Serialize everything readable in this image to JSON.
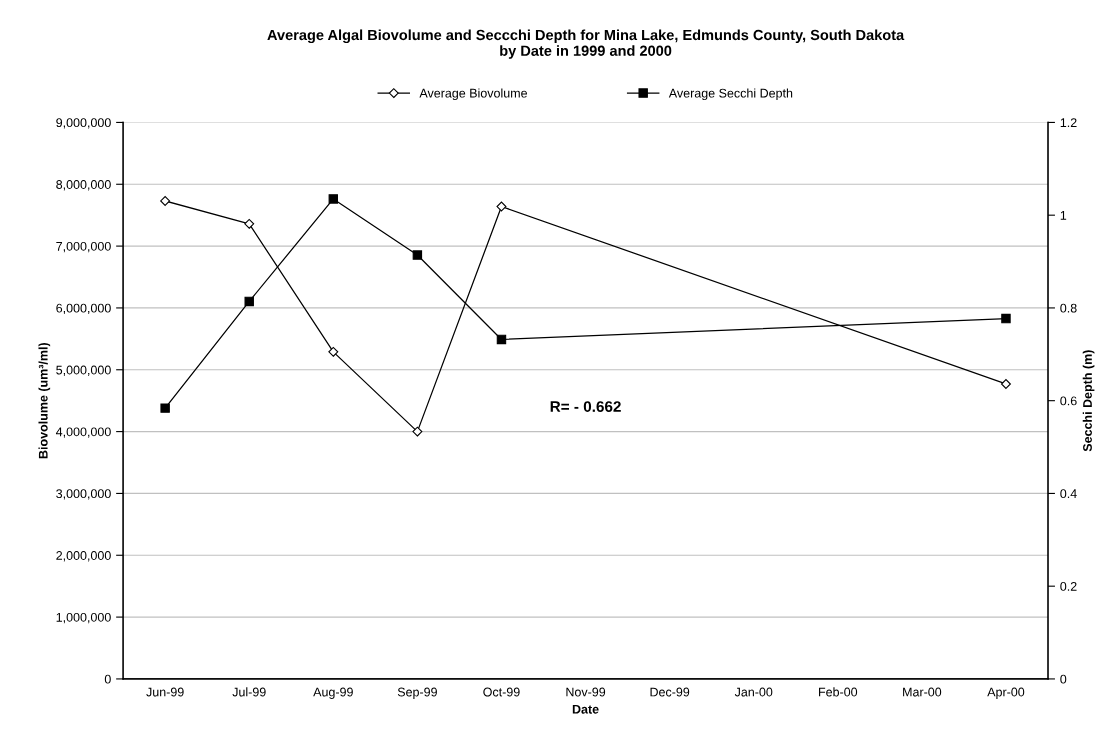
{
  "chart_data": {
    "type": "line",
    "title": "Average Algal Biovolume and Seccchi Depth for Mina Lake, Edmunds County, South Dakota\nby Date in 1999 and 2000",
    "xlabel": "Date",
    "ylabel": "Biovolume (um³/ml)",
    "y2label": "Secchi Depth (m)",
    "categories": [
      "Jun-99",
      "Jul-99",
      "Aug-99",
      "Sep-99",
      "Oct-99",
      "Nov-99",
      "Dec-99",
      "Jan-00",
      "Feb-00",
      "Mar-00",
      "Apr-00"
    ],
    "series": [
      {
        "name": "Average Biovolume",
        "color": "#000000",
        "marker": "diamond",
        "values": [
          7730000,
          7360000,
          5290000,
          4000000,
          7640000,
          null,
          null,
          null,
          null,
          null,
          4770000
        ]
      },
      {
        "name": "Average Secchi Depth",
        "color": "#000000",
        "marker": "square",
        "axis": "y2",
        "values": [
          0.584,
          0.814,
          1.035,
          0.914,
          0.732,
          null,
          null,
          null,
          null,
          null,
          0.777
        ]
      }
    ],
    "ylim": [
      0,
      9000000
    ],
    "yticks": [
      {
        "value": 0,
        "label": "0"
      },
      {
        "value": 1000000,
        "label": "1,000,000"
      },
      {
        "value": 2000000,
        "label": "2,000,000"
      },
      {
        "value": 3000000,
        "label": "3,000,000"
      },
      {
        "value": 4000000,
        "label": "4,000,000"
      },
      {
        "value": 5000000,
        "label": "5,000,000"
      },
      {
        "value": 6000000,
        "label": "6,000,000"
      },
      {
        "value": 7000000,
        "label": "7,000,000"
      },
      {
        "value": 8000000,
        "label": "8,000,000"
      },
      {
        "value": 9000000,
        "label": "9,000,000"
      }
    ],
    "y2lim": [
      0,
      1.2
    ],
    "y2ticks": [
      0,
      0.2,
      0.4,
      0.6,
      0.8,
      1,
      1.2
    ],
    "annotations": [
      "R= - 0.662"
    ],
    "grid": "y",
    "legend": "top",
    "line_style": "solid"
  }
}
